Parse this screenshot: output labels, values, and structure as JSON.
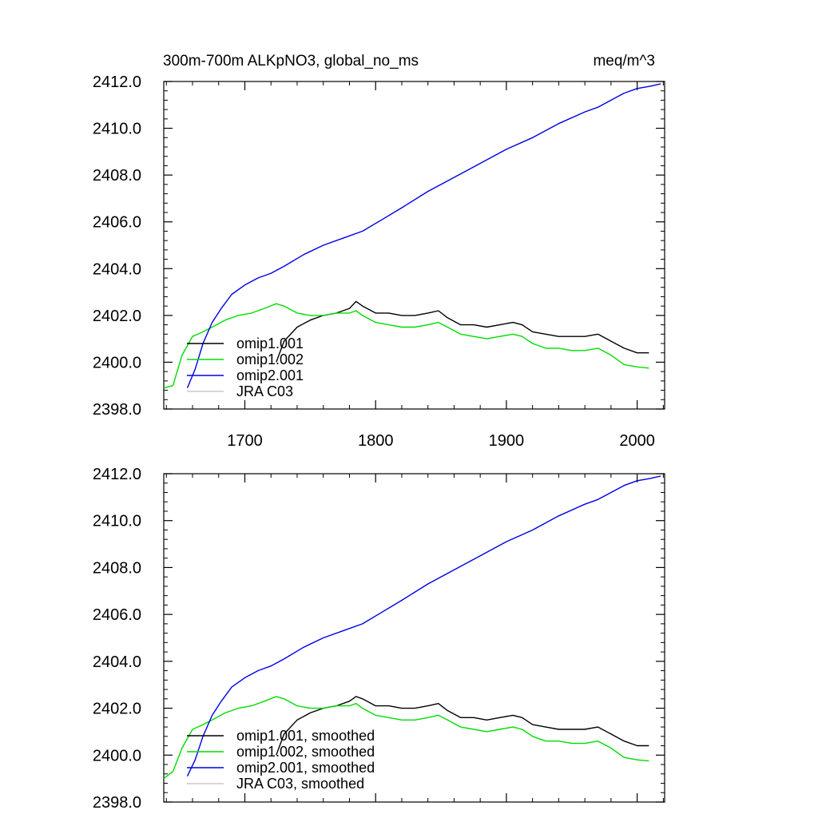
{
  "figure": {
    "title_left": "300m-700m ALKpNO3, global_no_ms",
    "title_right": "meq/m^3"
  },
  "chart_data": [
    {
      "type": "line",
      "title": "300m-700m ALKpNO3, global_no_ms",
      "units": "meq/m^3",
      "xlim": [
        1638,
        2021
      ],
      "ylim": [
        2398.0,
        2412.0
      ],
      "xticks": [
        1700,
        1800,
        1900,
        2000
      ],
      "xtick_labels": [
        "1700",
        "1800",
        "1900",
        "2000"
      ],
      "yticks": [
        2398,
        2400,
        2402,
        2404,
        2406,
        2408,
        2410,
        2412
      ],
      "ytick_labels": [
        "2398.0",
        "2400.0",
        "2402.0",
        "2404.0",
        "2406.0",
        "2408.0",
        "2410.0",
        "2412.0"
      ],
      "grid": false,
      "legend_position": "bottom-left",
      "series": [
        {
          "name": "omip1.001",
          "color": "#000000",
          "x": [
            1724,
            1730,
            1740,
            1750,
            1760,
            1770,
            1780,
            1785,
            1790,
            1800,
            1810,
            1820,
            1830,
            1840,
            1848,
            1855,
            1865,
            1875,
            1885,
            1895,
            1905,
            1912,
            1920,
            1930,
            1940,
            1950,
            1960,
            1970,
            1980,
            1990,
            2000,
            2009
          ],
          "y": [
            2400.0,
            2400.9,
            2401.5,
            2401.8,
            2402.0,
            2402.1,
            2402.3,
            2402.6,
            2402.4,
            2402.1,
            2402.1,
            2402.0,
            2402.0,
            2402.1,
            2402.2,
            2401.9,
            2401.6,
            2401.6,
            2401.5,
            2401.6,
            2401.7,
            2401.6,
            2401.3,
            2401.2,
            2401.1,
            2401.1,
            2401.1,
            2401.2,
            2400.9,
            2400.6,
            2400.4,
            2400.4
          ]
        },
        {
          "name": "omip1.002",
          "color": "#00dd00",
          "x": [
            1638,
            1645,
            1652,
            1660,
            1668,
            1675,
            1685,
            1695,
            1705,
            1715,
            1724,
            1730,
            1740,
            1750,
            1760,
            1770,
            1780,
            1785,
            1790,
            1800,
            1810,
            1820,
            1830,
            1840,
            1848,
            1855,
            1865,
            1875,
            1885,
            1895,
            1905,
            1912,
            1920,
            1930,
            1940,
            1950,
            1960,
            1970,
            1980,
            1990,
            2000,
            2009
          ],
          "y": [
            2398.9,
            2399.0,
            2400.3,
            2401.1,
            2401.3,
            2401.5,
            2401.8,
            2402.0,
            2402.1,
            2402.3,
            2402.5,
            2402.4,
            2402.1,
            2402.0,
            2402.0,
            2402.1,
            2402.1,
            2402.2,
            2402.0,
            2401.7,
            2401.6,
            2401.5,
            2401.5,
            2401.6,
            2401.7,
            2401.5,
            2401.2,
            2401.1,
            2401.0,
            2401.1,
            2401.2,
            2401.1,
            2400.8,
            2400.6,
            2400.6,
            2400.5,
            2400.5,
            2400.6,
            2400.3,
            2399.9,
            2399.8,
            2399.75
          ]
        },
        {
          "name": "omip2.001",
          "color": "#0000e6",
          "x": [
            1656,
            1662,
            1668,
            1675,
            1682,
            1690,
            1700,
            1710,
            1720,
            1730,
            1745,
            1760,
            1775,
            1790,
            1805,
            1820,
            1840,
            1860,
            1880,
            1900,
            1920,
            1940,
            1960,
            1970,
            1980,
            1990,
            2000,
            2010,
            2018
          ],
          "y": [
            2398.9,
            2399.7,
            2400.8,
            2401.7,
            2402.3,
            2402.9,
            2403.3,
            2403.6,
            2403.8,
            2404.1,
            2404.6,
            2405.0,
            2405.3,
            2405.6,
            2406.1,
            2406.6,
            2407.3,
            2407.9,
            2408.5,
            2409.1,
            2409.6,
            2410.2,
            2410.7,
            2410.9,
            2411.2,
            2411.5,
            2411.7,
            2411.8,
            2411.9
          ]
        },
        {
          "name": "JRA C03",
          "color": "#c8c8c8",
          "x": [],
          "y": []
        }
      ]
    },
    {
      "type": "line",
      "xlim": [
        1638,
        2021
      ],
      "ylim": [
        2398.0,
        2412.0
      ],
      "xticks": [
        1700,
        1800,
        1900,
        2000
      ],
      "yticks": [
        2398,
        2400,
        2402,
        2404,
        2406,
        2408,
        2410,
        2412
      ],
      "ytick_labels": [
        "2398.0",
        "2400.0",
        "2402.0",
        "2404.0",
        "2406.0",
        "2408.0",
        "2410.0",
        "2412.0"
      ],
      "grid": false,
      "legend_position": "bottom-left",
      "series": [
        {
          "name": "omip1.001, smoothed",
          "color": "#000000",
          "x": [
            1724,
            1730,
            1740,
            1750,
            1760,
            1770,
            1780,
            1785,
            1790,
            1800,
            1810,
            1820,
            1830,
            1840,
            1848,
            1855,
            1865,
            1875,
            1885,
            1895,
            1905,
            1912,
            1920,
            1930,
            1940,
            1950,
            1960,
            1970,
            1980,
            1990,
            2000,
            2009
          ],
          "y": [
            2400.0,
            2400.9,
            2401.5,
            2401.8,
            2402.0,
            2402.1,
            2402.3,
            2402.5,
            2402.4,
            2402.1,
            2402.1,
            2402.0,
            2402.0,
            2402.1,
            2402.2,
            2401.9,
            2401.6,
            2401.6,
            2401.5,
            2401.6,
            2401.7,
            2401.6,
            2401.3,
            2401.2,
            2401.1,
            2401.1,
            2401.1,
            2401.2,
            2400.9,
            2400.6,
            2400.4,
            2400.4
          ]
        },
        {
          "name": "omip1.002, smoothed",
          "color": "#00dd00",
          "x": [
            1638,
            1645,
            1652,
            1660,
            1668,
            1675,
            1685,
            1695,
            1705,
            1715,
            1724,
            1730,
            1740,
            1750,
            1760,
            1770,
            1780,
            1785,
            1790,
            1800,
            1810,
            1820,
            1830,
            1840,
            1848,
            1855,
            1865,
            1875,
            1885,
            1895,
            1905,
            1912,
            1920,
            1930,
            1940,
            1950,
            1960,
            1970,
            1980,
            1990,
            2000,
            2009
          ],
          "y": [
            2399.0,
            2399.3,
            2400.3,
            2401.1,
            2401.3,
            2401.5,
            2401.8,
            2402.0,
            2402.1,
            2402.3,
            2402.5,
            2402.4,
            2402.1,
            2402.0,
            2402.0,
            2402.1,
            2402.1,
            2402.2,
            2402.0,
            2401.7,
            2401.6,
            2401.5,
            2401.5,
            2401.6,
            2401.7,
            2401.5,
            2401.2,
            2401.1,
            2401.0,
            2401.1,
            2401.2,
            2401.1,
            2400.8,
            2400.6,
            2400.6,
            2400.5,
            2400.5,
            2400.6,
            2400.3,
            2399.9,
            2399.8,
            2399.75
          ]
        },
        {
          "name": "omip2.001, smoothed",
          "color": "#0000e6",
          "x": [
            1656,
            1662,
            1668,
            1675,
            1682,
            1690,
            1700,
            1710,
            1720,
            1730,
            1745,
            1760,
            1775,
            1790,
            1805,
            1820,
            1840,
            1860,
            1880,
            1900,
            1920,
            1940,
            1960,
            1970,
            1980,
            1990,
            2000,
            2010,
            2018
          ],
          "y": [
            2399.1,
            2399.8,
            2400.8,
            2401.7,
            2402.3,
            2402.9,
            2403.3,
            2403.6,
            2403.8,
            2404.1,
            2404.6,
            2405.0,
            2405.3,
            2405.6,
            2406.1,
            2406.6,
            2407.3,
            2407.9,
            2408.5,
            2409.1,
            2409.6,
            2410.2,
            2410.7,
            2410.9,
            2411.2,
            2411.5,
            2411.7,
            2411.8,
            2411.9
          ]
        },
        {
          "name": "JRA C03, smoothed",
          "color": "#c8c8c8",
          "x": [],
          "y": []
        }
      ]
    }
  ]
}
